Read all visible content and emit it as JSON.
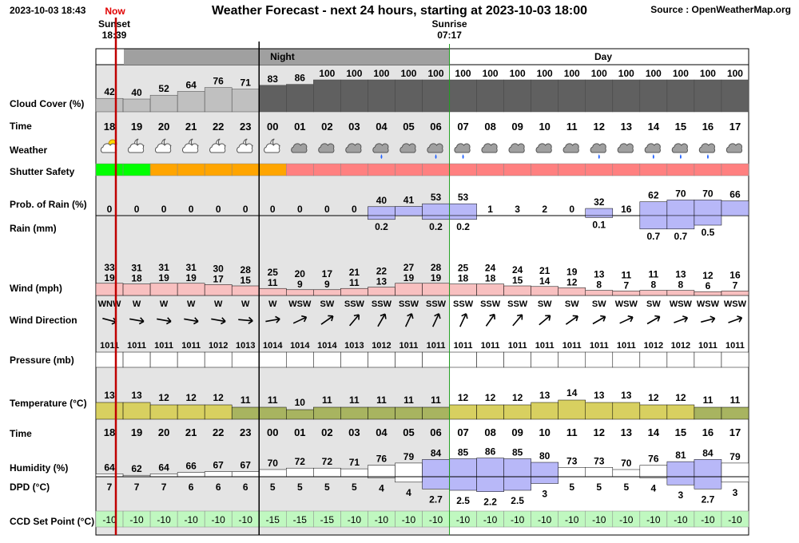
{
  "header": {
    "date": "2023-10-03 18:43",
    "title": "Weather Forecast - next 24 hours, starting at 2023-10-03 18:00",
    "source": "Source : OpenWeatherMap.org",
    "now": "Now",
    "sunset_label": "Sunset",
    "sunset_time": "18:39",
    "sunrise_label": "Sunrise",
    "sunrise_time": "07:17",
    "night": "Night",
    "day": "Day"
  },
  "labels": {
    "cloud": "Cloud Cover (%)",
    "time": "Time",
    "weather": "Weather",
    "shutter": "Shutter Safety",
    "prob": "Prob. of Rain (%)",
    "rain": "Rain (mm)",
    "wind": "Wind (mph)",
    "wind_dir": "Wind Direction",
    "pressure": "Pressure (mb)",
    "temperature": "Temperature (°C)",
    "time2": "Time",
    "humidity": "Humidity (%)",
    "dpd": "DPD (°C)",
    "ccd": "CCD Set Point (°C)"
  },
  "colors": {
    "cloud_light": "#c0c0c0",
    "cloud_dark": "#606060",
    "night_header": "#a0a0a0",
    "night_bg": "#e4e4e4",
    "shutter_green": "#00ff00",
    "shutter_orange": "#ffa500",
    "shutter_red": "#ff8080",
    "rain_bar": "#b8b8f8",
    "wind_bar": "#f8c0c0",
    "temp_warm": "#d8d060",
    "temp_cool": "#a8b460",
    "humidity_bar": "#b8b8f8",
    "ccd_bg": "#c0f8c0",
    "now_line": "#c00000"
  },
  "chart_data": {
    "type": "table",
    "hours": [
      "18",
      "19",
      "20",
      "21",
      "22",
      "23",
      "00",
      "01",
      "02",
      "03",
      "04",
      "05",
      "06",
      "07",
      "08",
      "09",
      "10",
      "11",
      "12",
      "13",
      "14",
      "15",
      "16",
      "17"
    ],
    "cloud_cover": [
      42,
      40,
      52,
      64,
      76,
      71,
      83,
      86,
      100,
      100,
      100,
      100,
      100,
      100,
      100,
      100,
      100,
      100,
      100,
      100,
      100,
      100,
      100,
      100
    ],
    "weather_icons": [
      "partly-cloudy-sun",
      "partly-cloudy-moon",
      "partly-cloudy-moon",
      "partly-cloudy-moon",
      "partly-cloudy-moon",
      "partly-cloudy-moon",
      "partly-cloudy-moon",
      "cloud",
      "cloud",
      "cloud",
      "rain-cloud",
      "cloud",
      "rain-cloud",
      "rain-cloud",
      "cloud",
      "cloud",
      "cloud",
      "cloud",
      "rain-cloud",
      "cloud",
      "rain-cloud",
      "rain-cloud",
      "rain-cloud",
      "cloud"
    ],
    "shutter_safety": [
      "green",
      "green",
      "orange",
      "orange",
      "orange",
      "orange",
      "orange",
      "red",
      "red",
      "red",
      "red",
      "red",
      "red",
      "red",
      "red",
      "red",
      "red",
      "red",
      "red",
      "red",
      "red",
      "red",
      "red",
      "red"
    ],
    "prob_of_rain": [
      0,
      0,
      0,
      0,
      0,
      0,
      0,
      0,
      0,
      0,
      40,
      41,
      53,
      53,
      1,
      3,
      2,
      0,
      32,
      16,
      62,
      70,
      70,
      66
    ],
    "rain_mm": [
      null,
      null,
      null,
      null,
      null,
      null,
      null,
      null,
      null,
      null,
      0.2,
      null,
      0.2,
      0.2,
      null,
      null,
      null,
      null,
      0.1,
      null,
      0.7,
      0.7,
      0.5,
      null
    ],
    "wind_gust": [
      33,
      31,
      31,
      31,
      30,
      28,
      25,
      20,
      17,
      21,
      22,
      27,
      28,
      25,
      24,
      24,
      21,
      19,
      13,
      11,
      11,
      13,
      12,
      16
    ],
    "wind_speed": [
      19,
      18,
      19,
      19,
      17,
      15,
      11,
      9,
      9,
      11,
      13,
      19,
      19,
      18,
      18,
      15,
      14,
      12,
      8,
      7,
      8,
      8,
      6,
      7
    ],
    "wind_direction": [
      "WNW",
      "W",
      "W",
      "W",
      "W",
      "W",
      "W",
      "WSW",
      "SW",
      "SSW",
      "SSW",
      "SSW",
      "SSW",
      "SSW",
      "SSW",
      "SSW",
      "SW",
      "SW",
      "SW",
      "WSW",
      "SW",
      "WSW",
      "WSW",
      "WSW"
    ],
    "wind_arrow_deg": [
      15,
      10,
      10,
      10,
      10,
      5,
      -10,
      -25,
      -35,
      -50,
      -60,
      -65,
      -65,
      -65,
      -55,
      -50,
      -40,
      -35,
      -30,
      -25,
      -30,
      -20,
      -15,
      -20
    ],
    "pressure": [
      1011,
      1011,
      1011,
      1011,
      1012,
      1013,
      1014,
      1014,
      1014,
      1013,
      1012,
      1011,
      1011,
      1011,
      1011,
      1011,
      1011,
      1011,
      1011,
      1011,
      1012,
      1012,
      1011,
      1011
    ],
    "temperature": [
      13,
      13,
      12,
      12,
      12,
      11,
      11,
      10,
      11,
      11,
      11,
      11,
      11,
      12,
      12,
      12,
      13,
      14,
      13,
      13,
      12,
      12,
      11,
      11
    ],
    "humidity": [
      64,
      62,
      64,
      66,
      67,
      67,
      70,
      72,
      72,
      71,
      76,
      79,
      84,
      85,
      86,
      85,
      80,
      73,
      73,
      70,
      76,
      81,
      84,
      79
    ],
    "dpd": [
      "7",
      "7",
      "7",
      "6",
      "6",
      "6",
      "5",
      "5",
      "5",
      "5",
      "4",
      "4",
      "2.7",
      "2.5",
      "2.2",
      "2.5",
      "3",
      "5",
      "5",
      "5",
      "4",
      "3",
      "2.7",
      "3"
    ],
    "ccd_set_point": [
      -10,
      -10,
      -10,
      -10,
      -10,
      -10,
      -15,
      -15,
      -15,
      -10,
      -10,
      -10,
      -10,
      -10,
      -10,
      -10,
      -10,
      -10,
      -10,
      -10,
      -10,
      -10,
      -10,
      -10
    ]
  }
}
